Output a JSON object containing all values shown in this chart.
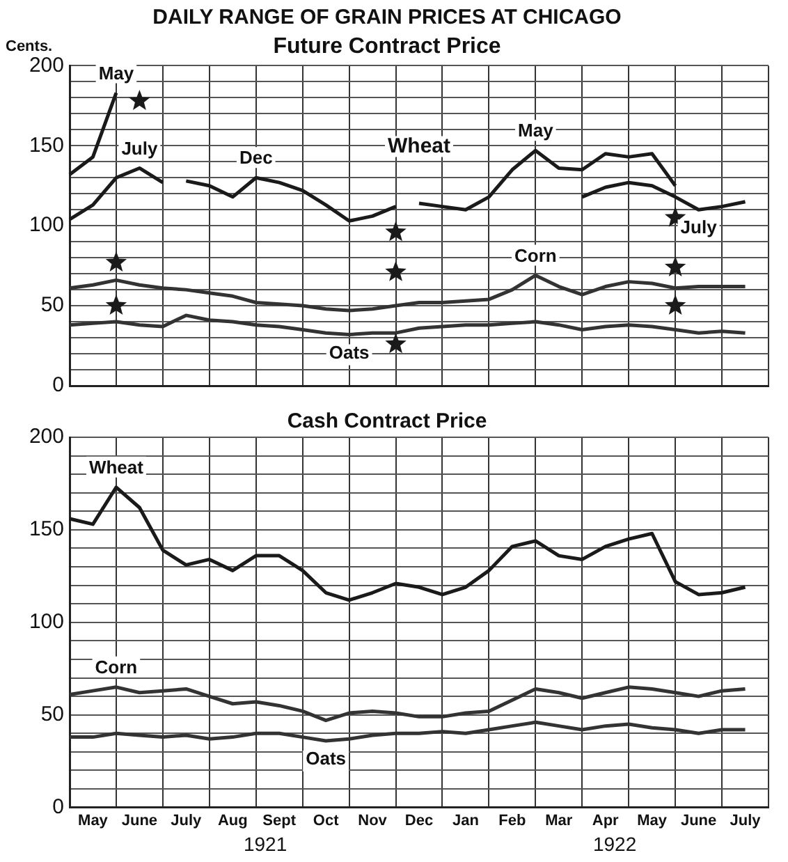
{
  "chart_data": [
    {
      "type": "line",
      "title": "DAILY RANGE OF GRAIN PRICES AT CHICAGO",
      "subtitle": "Future Contract Price",
      "ylabel": "Cents.",
      "annotations": [
        "Wheat"
      ],
      "categories": [
        null,
        null,
        null,
        null,
        null,
        null,
        null,
        null,
        null,
        null,
        null,
        null,
        null,
        null,
        null,
        null,
        null,
        null,
        null,
        null,
        null,
        null,
        null,
        null,
        null,
        null,
        null,
        null,
        null,
        null,
        null
      ],
      "series": [
        {
          "name": "May",
          "color": "#1a1a1a",
          "values": [
            132,
            143,
            183,
            null,
            null,
            null,
            null,
            null,
            null,
            null,
            null,
            null,
            null,
            null,
            null,
            null,
            null,
            null,
            null,
            null,
            null,
            null,
            null,
            null,
            null,
            null,
            null,
            null,
            null,
            null,
            null
          ]
        },
        {
          "name": "July",
          "color": "#1a1a1a",
          "values": [
            104,
            113,
            130,
            136,
            127,
            null,
            null,
            null,
            null,
            null,
            null,
            null,
            null,
            null,
            null,
            null,
            null,
            null,
            null,
            null,
            null,
            null,
            null,
            null,
            null,
            null,
            null,
            null,
            null,
            null,
            null
          ]
        },
        {
          "name": "Dec",
          "color": "#1a1a1a",
          "values": [
            null,
            null,
            null,
            null,
            null,
            128,
            125,
            118,
            130,
            127,
            122,
            113,
            103,
            106,
            112,
            null,
            null,
            null,
            null,
            null,
            null,
            null,
            null,
            null,
            null,
            null,
            null,
            null,
            null,
            null,
            null
          ]
        },
        {
          "name": "May",
          "color": "#1a1a1a",
          "values": [
            null,
            null,
            null,
            null,
            null,
            null,
            null,
            null,
            null,
            null,
            null,
            null,
            null,
            null,
            null,
            114,
            112,
            110,
            118,
            135,
            147,
            136,
            135,
            145,
            143,
            145,
            125,
            null,
            null,
            null,
            null
          ]
        },
        {
          "name": "July",
          "color": "#1a1a1a",
          "values": [
            null,
            null,
            null,
            null,
            null,
            null,
            null,
            null,
            null,
            null,
            null,
            null,
            null,
            null,
            null,
            null,
            null,
            null,
            null,
            null,
            null,
            null,
            118,
            124,
            127,
            125,
            118,
            110,
            112,
            115,
            null
          ]
        },
        {
          "name": "Corn",
          "color": "#333333",
          "values": [
            61,
            63,
            66,
            63,
            61,
            60,
            58,
            56,
            52,
            51,
            50,
            48,
            47,
            48,
            50,
            52,
            52,
            53,
            54,
            60,
            69,
            62,
            57,
            62,
            65,
            64,
            61,
            62,
            62,
            62,
            null
          ]
        },
        {
          "name": "Oats",
          "color": "#333333",
          "values": [
            38,
            39,
            40,
            38,
            37,
            44,
            41,
            40,
            38,
            37,
            35,
            33,
            32,
            33,
            33,
            36,
            37,
            38,
            38,
            39,
            40,
            38,
            35,
            37,
            38,
            37,
            35,
            33,
            34,
            33,
            null
          ]
        },
        {
          "type": "scatter",
          "marker": "star",
          "color": "#1a1a1a",
          "values": [
            null,
            null,
            null,
            178,
            null,
            null,
            null,
            null,
            null,
            null,
            null,
            null,
            null,
            null,
            96,
            null,
            null,
            null,
            null,
            null,
            null,
            null,
            null,
            null,
            null,
            null,
            105,
            null,
            null,
            null,
            null
          ]
        },
        {
          "type": "scatter",
          "marker": "star",
          "color": "#1a1a1a",
          "values": [
            null,
            null,
            77,
            null,
            null,
            null,
            null,
            null,
            null,
            null,
            null,
            null,
            null,
            null,
            71,
            null,
            null,
            null,
            null,
            null,
            null,
            null,
            null,
            null,
            null,
            null,
            74,
            null,
            null,
            null,
            null
          ]
        },
        {
          "type": "scatter",
          "marker": "star",
          "color": "#1a1a1a",
          "values": [
            null,
            null,
            50,
            null,
            null,
            null,
            null,
            null,
            null,
            null,
            null,
            null,
            null,
            null,
            26,
            null,
            null,
            null,
            null,
            null,
            null,
            null,
            null,
            null,
            null,
            null,
            50,
            null,
            null,
            null,
            null
          ]
        }
      ],
      "ylim": [
        0,
        200
      ],
      "yticks": [
        0,
        {
          "value": 10,
          "label": null
        },
        {
          "value": 20,
          "label": null
        },
        {
          "value": 30,
          "label": null
        },
        {
          "value": 40,
          "label": null
        },
        50,
        {
          "value": 60,
          "label": null
        },
        {
          "value": 70,
          "label": null
        },
        {
          "value": 80,
          "label": null
        },
        {
          "value": 90,
          "label": null
        },
        100,
        {
          "value": 110,
          "label": null
        },
        {
          "value": 120,
          "label": null
        },
        {
          "value": 130,
          "label": null
        },
        {
          "value": 140,
          "label": null
        },
        150,
        {
          "value": 160,
          "label": null
        },
        {
          "value": 170,
          "label": null
        },
        {
          "value": 180,
          "label": null
        },
        {
          "value": 190,
          "label": null
        },
        200
      ],
      "grid": true,
      "legend": false,
      "marker": "none",
      "line_style": "solid",
      "tick_labels": "y"
    },
    {
      "type": "line",
      "title": "Cash Contract Price",
      "annotations": [
        "1921",
        "1922"
      ],
      "categories": [
        null,
        "May",
        null,
        "June",
        null,
        "July",
        null,
        "Aug",
        null,
        "Sept",
        null,
        "Oct",
        null,
        "Nov",
        null,
        "Dec",
        null,
        "Jan",
        null,
        "Feb",
        null,
        "Mar",
        null,
        "Apr",
        null,
        "May",
        null,
        "June",
        null,
        "July",
        null
      ],
      "series": [
        {
          "name": "Wheat",
          "color": "#1a1a1a",
          "values": [
            156,
            153,
            173,
            162,
            139,
            131,
            134,
            128,
            136,
            136,
            128,
            116,
            112,
            116,
            121,
            119,
            115,
            119,
            128,
            141,
            144,
            136,
            134,
            141,
            145,
            148,
            122,
            115,
            116,
            119,
            null
          ]
        },
        {
          "name": "Corn",
          "color": "#333333",
          "values": [
            61,
            63,
            65,
            62,
            63,
            64,
            60,
            56,
            57,
            55,
            52,
            47,
            51,
            52,
            51,
            49,
            49,
            51,
            52,
            58,
            64,
            62,
            59,
            62,
            65,
            64,
            62,
            60,
            63,
            64,
            null
          ]
        },
        {
          "name": "Oats",
          "color": "#333333",
          "values": [
            38,
            38,
            40,
            39,
            38,
            39,
            37,
            38,
            40,
            40,
            38,
            36,
            37,
            39,
            40,
            40,
            41,
            40,
            42,
            44,
            46,
            44,
            42,
            44,
            45,
            43,
            42,
            40,
            42,
            42,
            null
          ]
        }
      ],
      "ylim": [
        0,
        200
      ],
      "yticks": [
        0,
        {
          "value": 10,
          "label": null
        },
        {
          "value": 20,
          "label": null
        },
        {
          "value": 30,
          "label": null
        },
        {
          "value": 40,
          "label": null
        },
        50,
        {
          "value": 60,
          "label": null
        },
        {
          "value": 70,
          "label": null
        },
        {
          "value": 80,
          "label": null
        },
        {
          "value": 90,
          "label": null
        },
        100,
        {
          "value": 110,
          "label": null
        },
        {
          "value": 120,
          "label": null
        },
        {
          "value": 130,
          "label": null
        },
        {
          "value": 140,
          "label": null
        },
        150,
        {
          "value": 160,
          "label": null
        },
        {
          "value": 170,
          "label": null
        },
        {
          "value": 180,
          "label": null
        },
        {
          "value": 190,
          "label": null
        },
        200
      ],
      "grid": true,
      "legend": false,
      "marker": "none",
      "line_style": "solid"
    }
  ]
}
